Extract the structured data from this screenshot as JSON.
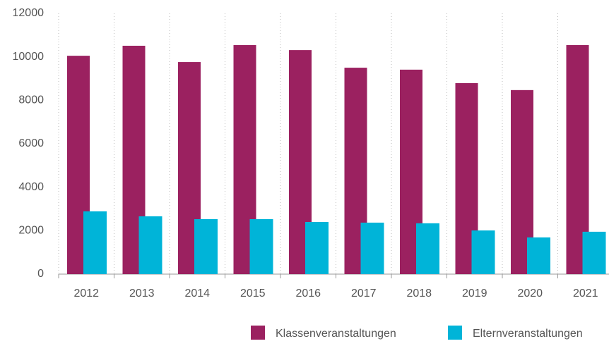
{
  "chart_data": {
    "type": "bar",
    "categories": [
      "2012",
      "2013",
      "2014",
      "2015",
      "2016",
      "2017",
      "2018",
      "2019",
      "2020",
      "2021"
    ],
    "series": [
      {
        "name": "Klassenveranstaltungen",
        "color": "#9b2160",
        "values": [
          10050,
          10510,
          9760,
          10540,
          10310,
          9500,
          9410,
          8790,
          8470,
          10540
        ]
      },
      {
        "name": "Elternveranstaltungen",
        "color": "#00b4d8",
        "values": [
          2890,
          2660,
          2530,
          2530,
          2400,
          2370,
          2340,
          2010,
          1690,
          1950
        ]
      }
    ],
    "ylim": [
      0,
      12000
    ],
    "yticks": [
      0,
      2000,
      4000,
      6000,
      8000,
      10000,
      12000
    ],
    "grid": true,
    "legend": "bottom"
  }
}
